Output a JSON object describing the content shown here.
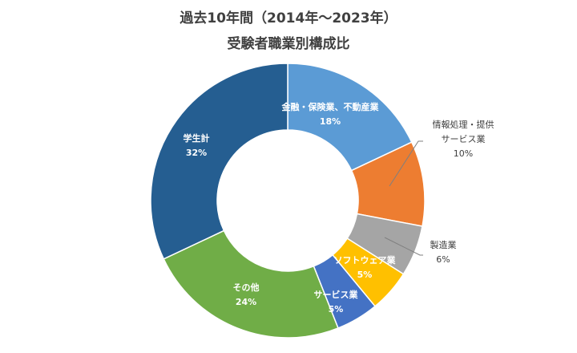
{
  "title_line1": "過去10年間（2014年～2023年）",
  "title_line2": "受験者職業別構成比",
  "chart_data": {
    "type": "pie",
    "variant": "donut",
    "title": "過去10年間（2014年～2023年） 受験者職業別構成比",
    "slices": [
      {
        "label": "金融・保険業、不動産業",
        "value": 18,
        "value_label": "18%",
        "color": "#5b9bd5",
        "label_lines": [
          "金融・保険業、不動産業"
        ],
        "label_position": "inside"
      },
      {
        "label": "情報処理・提供サービス業",
        "value": 10,
        "value_label": "10%",
        "color": "#ed7d31",
        "label_lines": [
          "情報処理・提供",
          "サービス業"
        ],
        "label_position": "outside"
      },
      {
        "label": "製造業",
        "value": 6,
        "value_label": "6%",
        "color": "#a5a5a5",
        "label_lines": [
          "製造業"
        ],
        "label_position": "outside"
      },
      {
        "label": "ソフトウェア業",
        "value": 5,
        "value_label": "5%",
        "color": "#ffc000",
        "label_lines": [
          "ソフトウェア業"
        ],
        "label_position": "inside"
      },
      {
        "label": "サービス業",
        "value": 5,
        "value_label": "5%",
        "color": "#4472c4",
        "label_lines": [
          "サービス業"
        ],
        "label_position": "inside"
      },
      {
        "label": "その他",
        "value": 24,
        "value_label": "24%",
        "color": "#70ad47",
        "label_lines": [
          "その他"
        ],
        "label_position": "inside"
      },
      {
        "label": "学生計",
        "value": 32,
        "value_label": "32%",
        "color": "#255e91",
        "label_lines": [
          "学生計"
        ],
        "label_position": "inside"
      }
    ],
    "start_angle": "12 o'clock",
    "direction": "clockwise",
    "legend": "none"
  }
}
